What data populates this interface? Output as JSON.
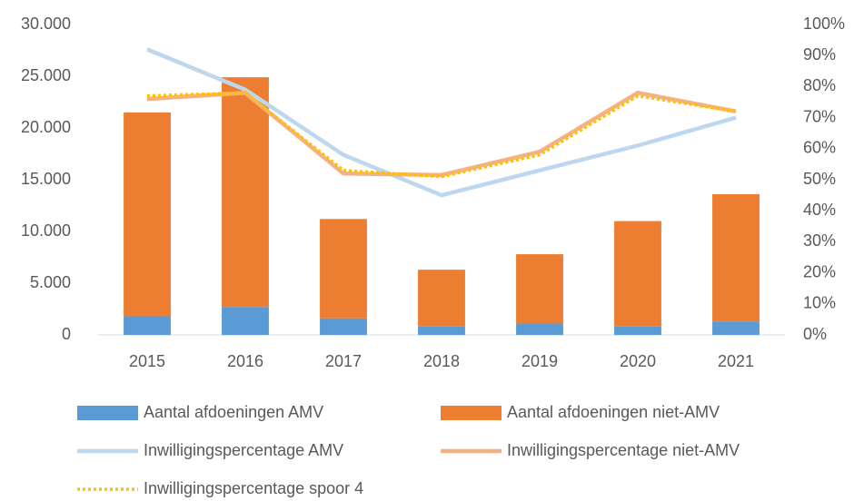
{
  "chart_data": {
    "type": "bar",
    "stacked": true,
    "categories": [
      "2015",
      "2016",
      "2017",
      "2018",
      "2019",
      "2020",
      "2021"
    ],
    "series": [
      {
        "name": "Aantal afdoeningen AMV",
        "type": "bar",
        "color": "#5b9bd5",
        "values": [
          1800,
          2700,
          1600,
          800,
          1100,
          800,
          1300
        ]
      },
      {
        "name": "Aantal afdoeningen niet-AMV",
        "type": "bar",
        "color": "#ed7d31",
        "values": [
          19700,
          22200,
          9600,
          5500,
          6700,
          10200,
          12300
        ]
      },
      {
        "name": "Inwilligingspercentage AMV",
        "type": "line",
        "axis": "y2",
        "color": "#bdd7ee",
        "line_style": "solid",
        "values": [
          92,
          79,
          58,
          45,
          53,
          61,
          70
        ]
      },
      {
        "name": "Inwilligingspercentage niet-AMV",
        "type": "line",
        "axis": "y2",
        "color": "#f4b183",
        "line_style": "solid",
        "values": [
          76,
          78,
          52,
          51.5,
          59,
          78,
          72
        ]
      },
      {
        "name": "Inwilligingspercentage spoor 4",
        "type": "line",
        "axis": "y2",
        "color": "#ffc000",
        "line_style": "dotted",
        "values": [
          77,
          78,
          53,
          51,
          58,
          77,
          72
        ]
      }
    ],
    "ylim": [
      0,
      30000
    ],
    "yticks": [
      0,
      {
        "value": 5000,
        "label": "5.000"
      },
      {
        "value": 10000,
        "label": "10.000"
      },
      {
        "value": 15000,
        "label": "15.000"
      },
      {
        "value": 20000,
        "label": "20.000"
      },
      {
        "value": 25000,
        "label": "25.000"
      },
      {
        "value": 30000,
        "label": "30.000"
      }
    ],
    "y2lim": [
      0,
      100
    ],
    "y2ticks": [
      {
        "value": 0,
        "label": "0%"
      },
      {
        "value": 10,
        "label": "10%"
      },
      {
        "value": 20,
        "label": "20%"
      },
      {
        "value": 30,
        "label": "30%"
      },
      {
        "value": 40,
        "label": "40%"
      },
      {
        "value": 50,
        "label": "50%"
      },
      {
        "value": 60,
        "label": "60%"
      },
      {
        "value": 70,
        "label": "70%"
      },
      {
        "value": 80,
        "label": "80%"
      },
      {
        "value": 90,
        "label": "90%"
      },
      {
        "value": 100,
        "label": "100%"
      }
    ],
    "legend": "bottom"
  }
}
